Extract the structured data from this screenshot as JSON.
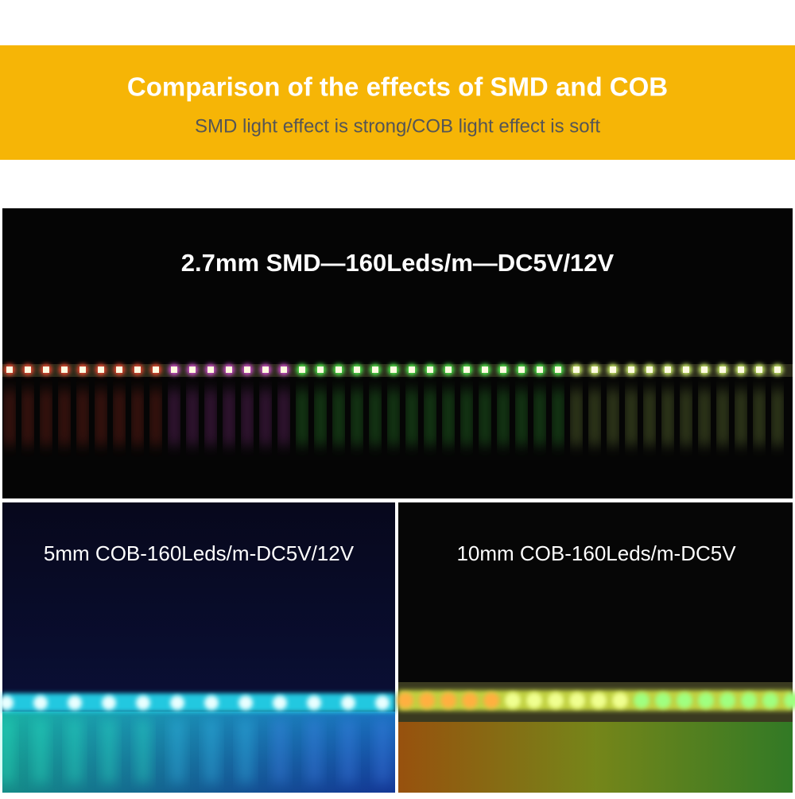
{
  "header": {
    "title": "Comparison of the effects of SMD and COB",
    "subtitle": "SMD light effect is strong/COB light effect is soft"
  },
  "panels": [
    {
      "label": "2.7mm SMD—160Leds/m—DC5V/12V"
    },
    {
      "label": "5mm COB-160Leds/m-DC5V/12V"
    },
    {
      "label": "10mm COB-160Leds/m-DC5V"
    }
  ]
}
